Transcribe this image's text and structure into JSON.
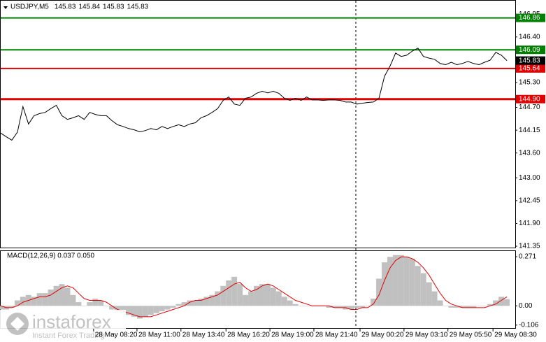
{
  "chart_data": [
    {
      "type": "line",
      "title": "USDJPY,M5",
      "quote": [
        145.83,
        145.84,
        145.83,
        145.83
      ],
      "color": "#000000",
      "values": [
        144.08,
        143.99,
        143.91,
        144.1,
        144.72,
        144.3,
        144.5,
        144.55,
        144.58,
        144.67,
        144.75,
        144.5,
        144.41,
        144.45,
        144.5,
        144.41,
        144.58,
        144.53,
        144.5,
        144.5,
        144.38,
        144.28,
        144.24,
        144.19,
        144.16,
        144.11,
        144.14,
        144.19,
        144.16,
        144.24,
        144.19,
        144.24,
        144.28,
        144.24,
        144.3,
        144.33,
        144.45,
        144.5,
        144.58,
        144.67,
        144.87,
        144.95,
        144.78,
        144.75,
        144.92,
        144.95,
        145.04,
        145.09,
        145.05,
        145.09,
        145.04,
        144.92,
        144.87,
        144.92,
        144.87,
        144.95,
        144.88,
        144.88,
        144.87,
        144.88,
        144.88,
        144.87,
        144.83,
        144.83,
        144.78,
        144.8,
        144.82,
        144.83,
        144.92,
        145.45,
        145.7,
        146.01,
        145.93,
        145.96,
        146.06,
        146.13,
        145.93,
        145.89,
        145.86,
        145.76,
        145.73,
        145.79,
        145.73,
        145.76,
        145.81,
        145.76,
        145.73,
        145.79,
        145.84,
        146.03,
        145.96,
        145.83
      ],
      "xlim": [
        0,
        92.5
      ],
      "ylim": [
        141.3,
        147.275
      ],
      "yticks": [
        146.95,
        {
          "value": 146.4,
          "label": "146.40"
        },
        {
          "value": 145.3,
          "label": "145.30"
        },
        {
          "value": 144.7,
          "label": "144.70"
        },
        144.15,
        {
          "value": 143.6,
          "label": "143.60"
        },
        {
          "value": 143,
          "label": "143.00"
        },
        142.45,
        {
          "value": 141.9,
          "label": "141.90"
        },
        141.35
      ],
      "levels": [
        {
          "value": 146.86,
          "label": "146.86",
          "color": "#008000"
        },
        {
          "value": 146.09,
          "label": "146.09",
          "color": "#008000"
        },
        {
          "value": 145.64,
          "label": "145.64",
          "color": "#e00000"
        },
        {
          "value": 144.9,
          "label": "144.90",
          "color": "#e00000"
        }
      ],
      "current": 145.83
    },
    {
      "type": "macd",
      "title": "MACD(12,26,9) 0.037 0.050",
      "histogram_color": "#c0c0c0",
      "signal_color": "#e00000",
      "values": [
        -0.02,
        -0.02,
        -0.01,
        0.03,
        0.05,
        0.06,
        0.05,
        0.07,
        0.07,
        0.09,
        0.11,
        0.12,
        0.1,
        0.06,
        0.02,
        0.0,
        0.02,
        0.04,
        0.03,
        0.0,
        -0.02,
        -0.03,
        -0.04,
        -0.05,
        -0.06,
        -0.07,
        -0.06,
        -0.05,
        -0.04,
        -0.03,
        -0.02,
        -0.01,
        0.01,
        0.02,
        0.03,
        0.03,
        0.04,
        0.05,
        0.06,
        0.08,
        0.11,
        0.14,
        0.16,
        0.12,
        0.06,
        0.08,
        0.11,
        0.12,
        0.12,
        0.1,
        0.08,
        0.05,
        0.03,
        0.01,
        0.0,
        0.0,
        0.0,
        0.0,
        0.0,
        -0.01,
        -0.01,
        -0.01,
        -0.02,
        -0.02,
        -0.01,
        -0.01,
        0.0,
        0.04,
        0.15,
        0.24,
        0.27,
        0.28,
        0.28,
        0.27,
        0.26,
        0.22,
        0.18,
        0.13,
        0.08,
        0.03,
        0.0,
        -0.01,
        -0.01,
        -0.01,
        -0.01,
        -0.01,
        0.0,
        0.0,
        0.01,
        0.03,
        0.05,
        0.037
      ],
      "signal": [
        0.0,
        -0.01,
        -0.01,
        0.0,
        0.02,
        0.03,
        0.04,
        0.05,
        0.05,
        0.06,
        0.08,
        0.1,
        0.11,
        0.1,
        0.07,
        0.04,
        0.03,
        0.03,
        0.03,
        0.02,
        0.0,
        -0.02,
        -0.03,
        -0.04,
        -0.05,
        -0.06,
        -0.06,
        -0.06,
        -0.05,
        -0.04,
        -0.03,
        -0.02,
        -0.01,
        0.0,
        0.02,
        0.03,
        0.03,
        0.04,
        0.05,
        0.06,
        0.08,
        0.1,
        0.12,
        0.13,
        0.1,
        0.08,
        0.09,
        0.11,
        0.12,
        0.11,
        0.09,
        0.07,
        0.05,
        0.03,
        0.02,
        0.01,
        0.0,
        0.0,
        0.0,
        0.0,
        -0.01,
        -0.01,
        -0.01,
        -0.02,
        -0.02,
        -0.01,
        -0.01,
        0.01,
        0.06,
        0.14,
        0.21,
        0.25,
        0.27,
        0.27,
        0.26,
        0.24,
        0.21,
        0.17,
        0.12,
        0.07,
        0.03,
        0.01,
        0.0,
        -0.01,
        -0.01,
        -0.01,
        -0.01,
        -0.01,
        0.0,
        0.01,
        0.03,
        0.05
      ],
      "xlim": [
        0,
        92.5
      ],
      "ylim": [
        -0.126,
        0.302
      ],
      "yticks": [
        0.271,
        {
          "value": 0,
          "label": "0.00"
        },
        -0.106
      ],
      "xticks": [
        {
          "value": 16.7,
          "label": "28 May 08:20"
        },
        {
          "value": 24.5,
          "label": "28 May 11:00"
        },
        {
          "value": 32.4,
          "label": "28 May 13:40"
        },
        {
          "value": 40.5,
          "label": "28 May 16:20"
        },
        {
          "value": 48.4,
          "label": "28 May 19:00"
        },
        {
          "value": 56.3,
          "label": "28 May 21:40"
        },
        {
          "value": 64.6,
          "label": "29 May 00:20"
        },
        {
          "value": 72.5,
          "label": "29 May 03:10"
        },
        {
          "value": 80.4,
          "label": "29 May 05:50"
        },
        {
          "value": 88.5,
          "label": "29 May 08:30"
        }
      ]
    }
  ],
  "watermark": {
    "brand": "instaforex",
    "tagline": "Instant Forex Trading"
  }
}
